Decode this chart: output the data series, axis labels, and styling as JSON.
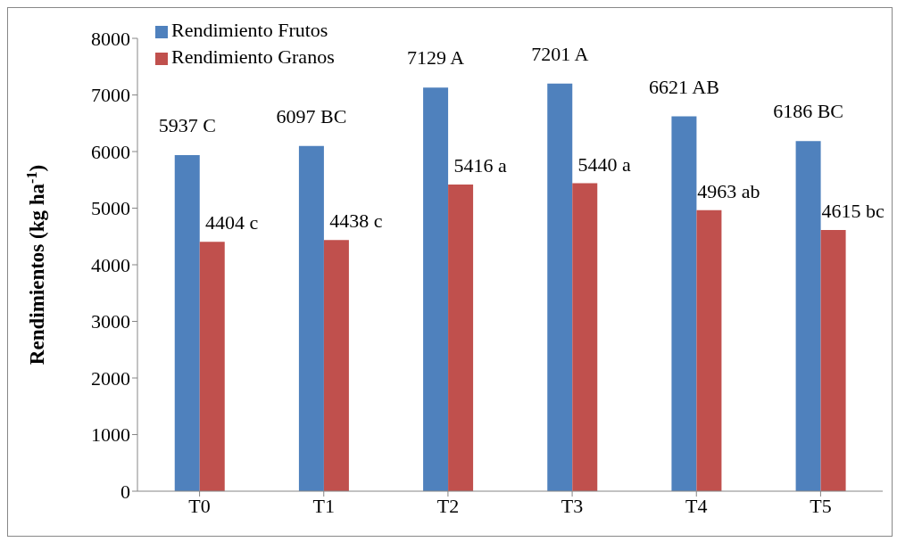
{
  "chart_data": {
    "type": "bar",
    "ylabel": "Rendimientos (kg ha$^{-1}$)",
    "categories": [
      "T0",
      "T1",
      "T2",
      "T3",
      "T4",
      "T5"
    ],
    "series": [
      {
        "name": "Rendimiento Frutos",
        "color": "#4f81bd",
        "values": [
          5937,
          6097,
          7129,
          7201,
          6621,
          6186
        ],
        "value_labels": [
          "5937 C",
          "6097 BC",
          "7129 A",
          "7201 A",
          "6621 AB",
          "6186 BC"
        ]
      },
      {
        "name": "Rendimiento Granos",
        "color": "#c0504d",
        "values": [
          4404,
          4438,
          5416,
          5440,
          4963,
          4615
        ],
        "value_labels": [
          "4404 c",
          "4438 c",
          "5416 a",
          "5440 a",
          "4963 ab",
          "4615 bc"
        ]
      }
    ],
    "ylim": [
      0,
      8000
    ],
    "yticks": [
      0,
      1000,
      2000,
      3000,
      4000,
      5000,
      6000,
      7000,
      8000
    ],
    "grid": false,
    "legend": "top left"
  }
}
